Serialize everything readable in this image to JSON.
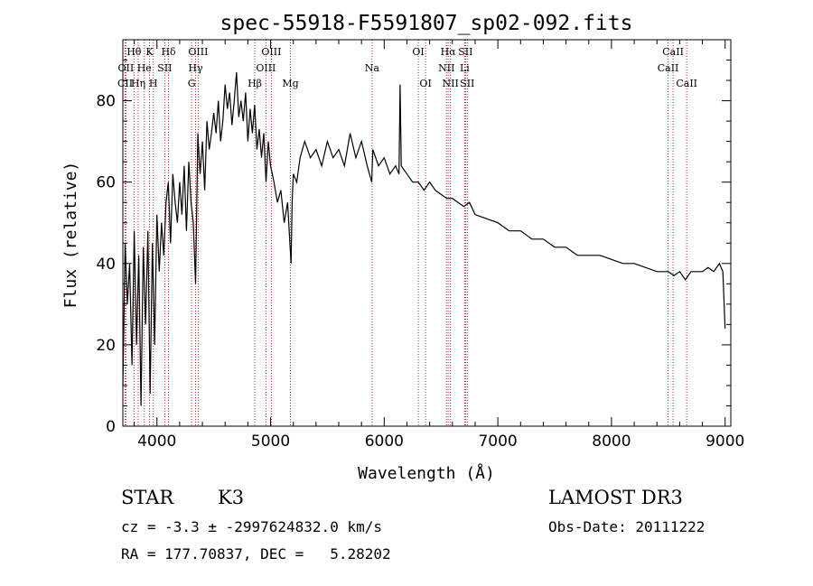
{
  "chart_data": {
    "type": "line",
    "title": "spec-55918-F5591807_sp02-092.fits",
    "xlabel": "Wavelength (Å)",
    "ylabel": "Flux (relative)",
    "xlim": [
      3700,
      9050
    ],
    "ylim": [
      0,
      95
    ],
    "x_ticks": [
      4000,
      5000,
      6000,
      7000,
      8000,
      9000
    ],
    "y_ticks": [
      0,
      20,
      40,
      60,
      80
    ],
    "grid": false,
    "line_color": "#000000",
    "marker_color": "#b22222",
    "series": [
      {
        "name": "spectrum",
        "x": [
          3700,
          3720,
          3740,
          3760,
          3780,
          3800,
          3820,
          3840,
          3860,
          3880,
          3900,
          3920,
          3940,
          3960,
          3980,
          4000,
          4020,
          4040,
          4060,
          4080,
          4100,
          4120,
          4140,
          4160,
          4180,
          4200,
          4220,
          4240,
          4260,
          4280,
          4300,
          4320,
          4340,
          4360,
          4380,
          4400,
          4420,
          4440,
          4460,
          4480,
          4500,
          4520,
          4540,
          4560,
          4580,
          4600,
          4620,
          4640,
          4660,
          4680,
          4700,
          4720,
          4740,
          4760,
          4780,
          4800,
          4820,
          4840,
          4860,
          4880,
          4900,
          4920,
          4940,
          4960,
          4980,
          5000,
          5030,
          5060,
          5090,
          5120,
          5150,
          5170,
          5180,
          5190,
          5200,
          5230,
          5260,
          5300,
          5350,
          5400,
          5450,
          5500,
          5550,
          5600,
          5650,
          5700,
          5750,
          5800,
          5850,
          5890,
          5900,
          5950,
          6000,
          6050,
          6100,
          6130,
          6140,
          6150,
          6200,
          6250,
          6300,
          6350,
          6400,
          6450,
          6500,
          6550,
          6563,
          6600,
          6650,
          6700,
          6750,
          6800,
          6900,
          7000,
          7100,
          7200,
          7300,
          7400,
          7500,
          7600,
          7700,
          7800,
          7900,
          8000,
          8100,
          8200,
          8300,
          8400,
          8500,
          8550,
          8600,
          8650,
          8700,
          8750,
          8800,
          8850,
          8900,
          8950,
          8980,
          9000
        ],
        "values": [
          10,
          45,
          30,
          40,
          15,
          48,
          20,
          42,
          5,
          44,
          25,
          48,
          8,
          45,
          20,
          52,
          38,
          50,
          42,
          55,
          60,
          45,
          62,
          55,
          50,
          60,
          52,
          64,
          48,
          65,
          55,
          50,
          35,
          72,
          62,
          70,
          58,
          75,
          68,
          72,
          77,
          72,
          80,
          70,
          75,
          84,
          78,
          82,
          74,
          80,
          87,
          76,
          80,
          75,
          82,
          70,
          78,
          72,
          79,
          68,
          73,
          66,
          72,
          60,
          70,
          64,
          60,
          55,
          58,
          50,
          55,
          45,
          40,
          55,
          62,
          60,
          66,
          70,
          66,
          68,
          64,
          70,
          66,
          68,
          64,
          72,
          66,
          70,
          64,
          60,
          68,
          64,
          66,
          62,
          64,
          62,
          84,
          64,
          62,
          60,
          60,
          58,
          60,
          58,
          57,
          56,
          56,
          56,
          55,
          54,
          55,
          52,
          51,
          50,
          48,
          48,
          46,
          46,
          44,
          44,
          42,
          42,
          42,
          41,
          40,
          40,
          39,
          38,
          38,
          37,
          38,
          36,
          38,
          38,
          38,
          39,
          38,
          40,
          38,
          24
        ]
      }
    ],
    "spectral_lines": [
      {
        "label": "Hθ",
        "wavelength": 3798,
        "row": 1
      },
      {
        "label": "OII",
        "wavelength": 3727,
        "row": 2
      },
      {
        "label": "CII",
        "wavelength": 3720,
        "row": 3
      },
      {
        "label": "He",
        "wavelength": 3889,
        "row": 2
      },
      {
        "label": "Hη",
        "wavelength": 3835,
        "row": 3
      },
      {
        "label": "K",
        "wavelength": 3934,
        "row": 1
      },
      {
        "label": "SII",
        "wavelength": 4069,
        "row": 2
      },
      {
        "label": "H",
        "wavelength": 3968,
        "row": 3
      },
      {
        "label": "Hδ",
        "wavelength": 4102,
        "row": 1
      },
      {
        "label": "OIII",
        "wavelength": 4363,
        "row": 1
      },
      {
        "label": "Hγ",
        "wavelength": 4340,
        "row": 2
      },
      {
        "label": "G",
        "wavelength": 4305,
        "row": 3
      },
      {
        "label": "Hβ",
        "wavelength": 4861,
        "row": 4
      },
      {
        "label": "OIII",
        "wavelength": 5007,
        "row": 1
      },
      {
        "label": "OIII",
        "wavelength": 4959,
        "row": 2
      },
      {
        "label": "Mg",
        "wavelength": 5175,
        "row": 4
      },
      {
        "label": "Na",
        "wavelength": 5893,
        "row": 2
      },
      {
        "label": "OI",
        "wavelength": 6300,
        "row": 1
      },
      {
        "label": "OI",
        "wavelength": 6364,
        "row": 3
      },
      {
        "label": "Hα",
        "wavelength": 6563,
        "row": 1
      },
      {
        "label": "NII",
        "wavelength": 6548,
        "row": 2
      },
      {
        "label": "NII",
        "wavelength": 6583,
        "row": 3
      },
      {
        "label": "SII",
        "wavelength": 6716,
        "row": 1
      },
      {
        "label": "Li",
        "wavelength": 6708,
        "row": 2
      },
      {
        "label": "SII",
        "wavelength": 6731,
        "row": 3
      },
      {
        "label": "CaII",
        "wavelength": 8542,
        "row": 1
      },
      {
        "label": "CaII",
        "wavelength": 8498,
        "row": 2
      },
      {
        "label": "CaII",
        "wavelength": 8662,
        "row": 3
      }
    ]
  },
  "info": {
    "class": "STAR",
    "subclass": "K3",
    "survey": "LAMOST DR3",
    "redshift": "cz = -3.3 ± -2997624832.0 km/s",
    "obs_date": "Obs-Date: 20111222",
    "coords": "RA = 177.70837, DEC =   5.28202"
  }
}
